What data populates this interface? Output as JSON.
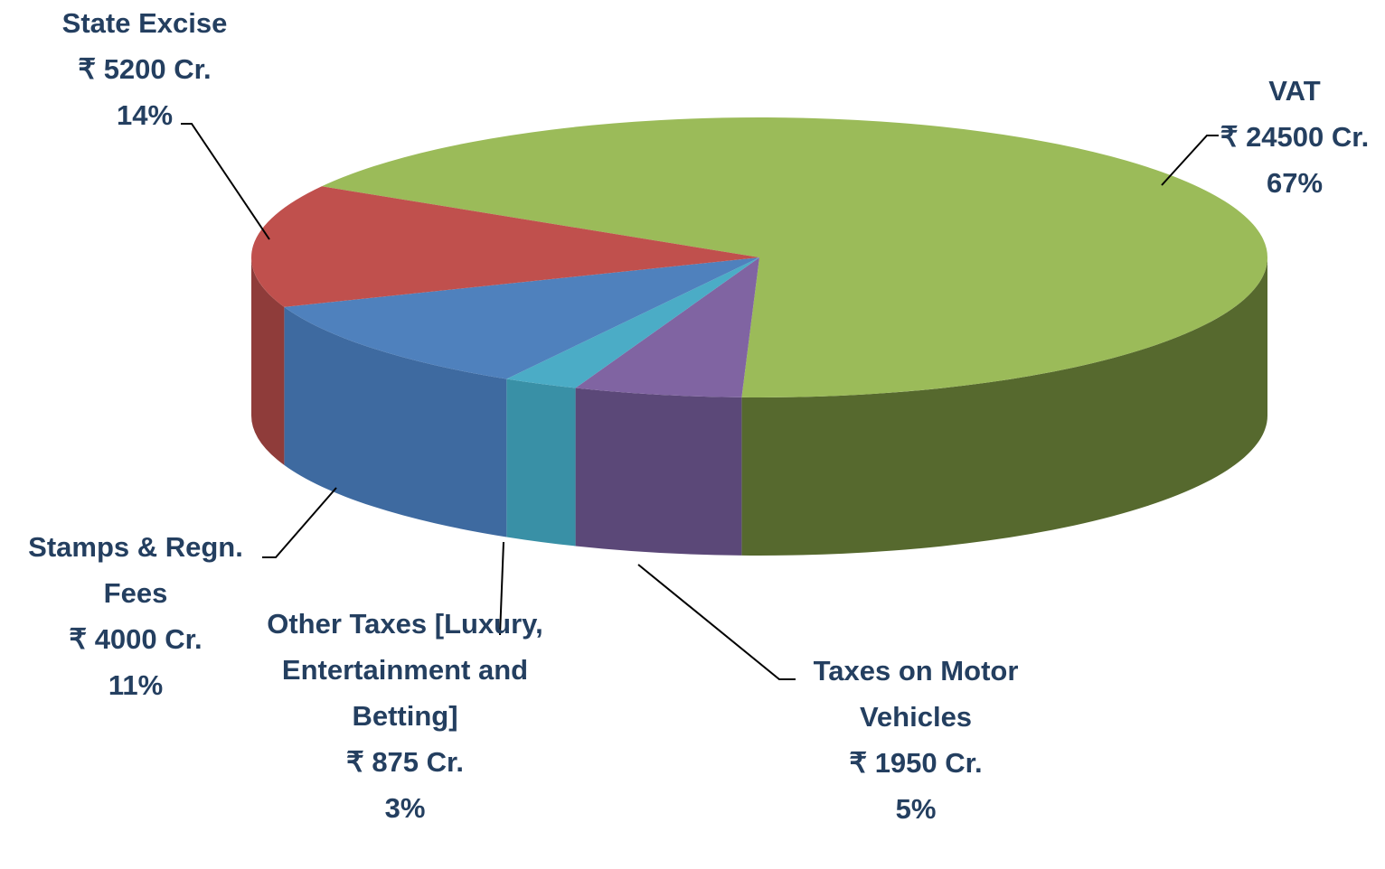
{
  "chart_data": {
    "type": "pie3d",
    "categories": [
      "VAT",
      "Taxes on Motor Vehicles",
      "Other Taxes [Luxury, Entertainment and Betting]",
      "Stamps & Regn. Fees",
      "State Excise"
    ],
    "values": [
      24500,
      1950,
      875,
      4000,
      5200
    ],
    "value_labels": [
      "₹ 24500 Cr.",
      "₹ 1950 Cr.",
      "₹ 875 Cr.",
      "₹ 4000 Cr.",
      "₹ 5200 Cr."
    ],
    "percentages": [
      67,
      5,
      3,
      11,
      14
    ],
    "percentage_labels": [
      "67%",
      "5%",
      "3%",
      "11%",
      "14%"
    ],
    "colors": [
      "#9bbb59",
      "#8064a2",
      "#4bacc6",
      "#4f81bd",
      "#c0504d"
    ],
    "side_colors": [
      "#56692e",
      "#5b4878",
      "#3990a6",
      "#3e6aa0",
      "#8f3c3a"
    ]
  }
}
